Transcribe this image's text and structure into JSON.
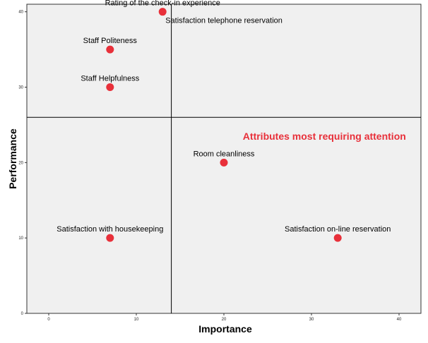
{
  "chart_data": {
    "type": "scatter",
    "xlabel": "Importance",
    "ylabel": "Performance",
    "xlim": [
      -2.5,
      42.5
    ],
    "ylim": [
      0,
      41
    ],
    "x_ticks": [
      0,
      10,
      20,
      30,
      40
    ],
    "y_ticks": [
      0,
      10,
      20,
      30,
      40
    ],
    "reference_lines": {
      "x": 14,
      "y": 26
    },
    "plot_background": "#f0f0f0",
    "point_color": "#e8303a",
    "annotation": {
      "text": "Attributes most requiring attention",
      "color": "#e8303a",
      "quadrant": "lower-right"
    },
    "points": [
      {
        "label": "Rating of the check-in experience",
        "x": 13,
        "y": 40,
        "label_position": "above"
      },
      {
        "label": "Satisfaction telephone reservation",
        "x": 13,
        "y": 40,
        "label_position": "below-right"
      },
      {
        "label": "Staff Politeness",
        "x": 7,
        "y": 35,
        "label_position": "above"
      },
      {
        "label": "Staff Helpfulness",
        "x": 7,
        "y": 30,
        "label_position": "above"
      },
      {
        "label": "Room cleanliness",
        "x": 20,
        "y": 20,
        "label_position": "above"
      },
      {
        "label": "Satisfaction with housekeeping",
        "x": 7,
        "y": 10,
        "label_position": "above"
      },
      {
        "label": "Satisfaction on-line reservation",
        "x": 33,
        "y": 10,
        "label_position": "above"
      }
    ]
  }
}
